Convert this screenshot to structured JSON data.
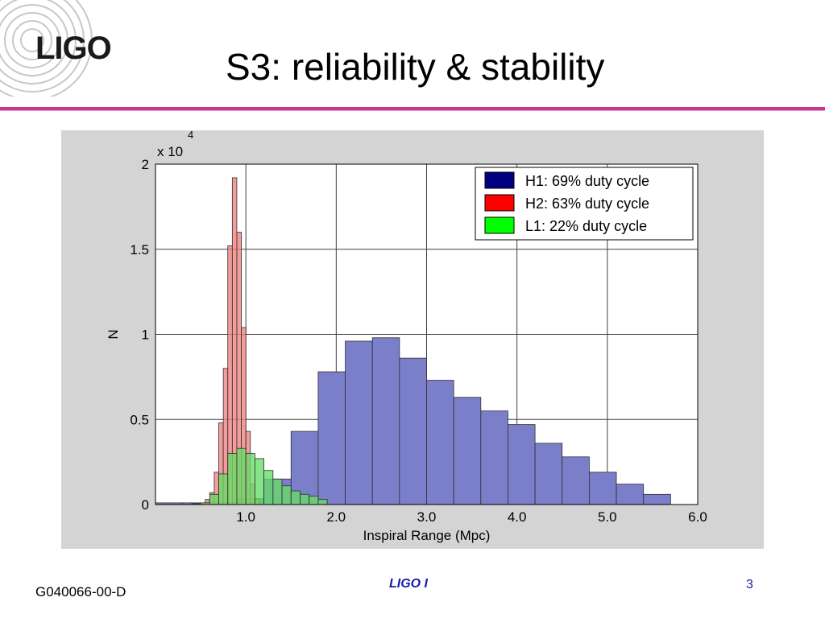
{
  "slide": {
    "logo_text": "LIGO",
    "title": "S3: reliability & stability",
    "footer_left": "G040066-00-D",
    "footer_center": "LIGO I",
    "footer_right": "3"
  },
  "colors": {
    "accent_rule": "#cc3399",
    "plot_background": "#d4d4d4",
    "H1": "#7b7ec8",
    "H2": "#f08080",
    "L1": "#66dd66"
  },
  "chart_data": {
    "type": "bar",
    "title": "",
    "xlabel": "Inspiral Range (Mpc)",
    "ylabel": "N",
    "y_multiplier_label": "x 10",
    "y_multiplier_exp": "4",
    "xlim": [
      0,
      6.0
    ],
    "ylim": [
      0,
      20000
    ],
    "x_ticks": [
      "1.0",
      "2.0",
      "3.0",
      "4.0",
      "5.0",
      "6.0"
    ],
    "y_ticks": [
      "0",
      "0.5",
      "1",
      "1.5",
      "2"
    ],
    "grid": true,
    "legend_position": "top-right",
    "legend": [
      {
        "label": "H1: 69% duty cycle",
        "color": "#000080"
      },
      {
        "label": "H2: 63% duty cycle",
        "color": "#ff0000"
      },
      {
        "label": "L1: 22% duty cycle",
        "color": "#00ff00"
      }
    ],
    "series": [
      {
        "name": "H1: 69% duty cycle",
        "bins": [
          [
            0.0,
            0.3,
            100
          ],
          [
            0.3,
            0.6,
            100
          ],
          [
            0.6,
            0.9,
            150
          ],
          [
            0.9,
            1.2,
            350
          ],
          [
            1.2,
            1.5,
            1500
          ],
          [
            1.5,
            1.8,
            4300
          ],
          [
            1.8,
            2.1,
            7800
          ],
          [
            2.1,
            2.4,
            9600
          ],
          [
            2.4,
            2.7,
            9800
          ],
          [
            2.7,
            3.0,
            8600
          ],
          [
            3.0,
            3.3,
            7300
          ],
          [
            3.3,
            3.6,
            6300
          ],
          [
            3.6,
            3.9,
            5500
          ],
          [
            3.9,
            4.2,
            4700
          ],
          [
            4.2,
            4.5,
            3600
          ],
          [
            4.5,
            4.8,
            2800
          ],
          [
            4.8,
            5.1,
            1900
          ],
          [
            5.1,
            5.4,
            1200
          ],
          [
            5.4,
            5.7,
            600
          ],
          [
            5.7,
            6.0,
            0
          ]
        ]
      },
      {
        "name": "H2: 63% duty cycle",
        "bins": [
          [
            0.4,
            0.5,
            50
          ],
          [
            0.5,
            0.55,
            100
          ],
          [
            0.55,
            0.6,
            300
          ],
          [
            0.6,
            0.65,
            700
          ],
          [
            0.65,
            0.7,
            1900
          ],
          [
            0.7,
            0.75,
            4800
          ],
          [
            0.75,
            0.8,
            8000
          ],
          [
            0.8,
            0.85,
            15200
          ],
          [
            0.85,
            0.9,
            19200
          ],
          [
            0.9,
            0.95,
            16000
          ],
          [
            0.95,
            1.0,
            10400
          ],
          [
            1.0,
            1.05,
            4300
          ],
          [
            1.05,
            1.1,
            1200
          ],
          [
            1.1,
            1.15,
            300
          ],
          [
            1.15,
            1.2,
            100
          ]
        ]
      },
      {
        "name": "L1: 22% duty cycle",
        "bins": [
          [
            0.4,
            0.5,
            50
          ],
          [
            0.5,
            0.6,
            100
          ],
          [
            0.6,
            0.7,
            600
          ],
          [
            0.7,
            0.8,
            1800
          ],
          [
            0.8,
            0.9,
            3000
          ],
          [
            0.9,
            1.0,
            3300
          ],
          [
            1.0,
            1.1,
            3000
          ],
          [
            1.1,
            1.2,
            2700
          ],
          [
            1.2,
            1.3,
            2000
          ],
          [
            1.3,
            1.4,
            1500
          ],
          [
            1.4,
            1.5,
            1100
          ],
          [
            1.5,
            1.6,
            800
          ],
          [
            1.6,
            1.7,
            600
          ],
          [
            1.7,
            1.8,
            500
          ],
          [
            1.8,
            1.9,
            300
          ]
        ]
      }
    ]
  }
}
